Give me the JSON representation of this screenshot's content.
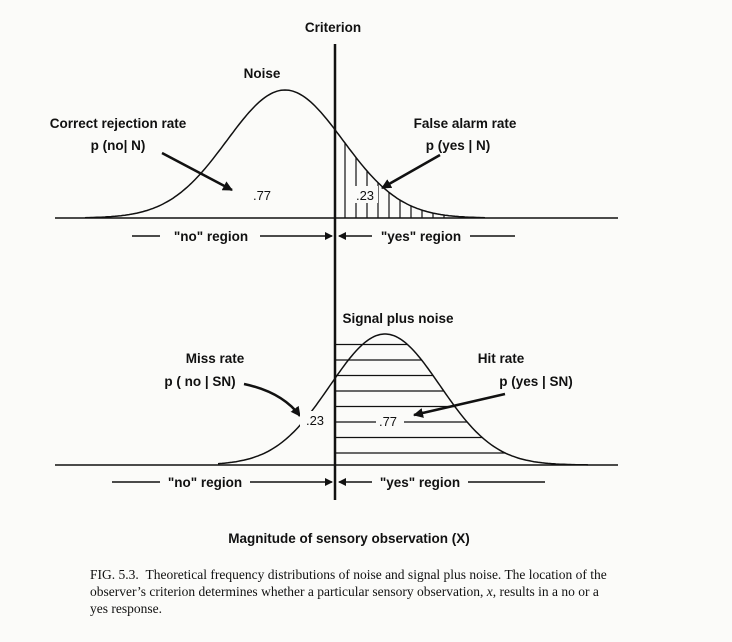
{
  "criterion_label": "Criterion",
  "noise": {
    "title": "Noise",
    "correct_rejection_label": "Correct rejection rate",
    "correct_rejection_formula": "p (no| N)",
    "false_alarm_label": "False alarm rate",
    "false_alarm_formula": "p (yes | N)",
    "correct_rejection_value": ".77",
    "false_alarm_value": ".23",
    "no_region": "\"no\" region",
    "yes_region": "\"yes\" region"
  },
  "signal": {
    "title": "Signal plus noise",
    "miss_label": "Miss rate",
    "miss_formula": "p ( no | SN)",
    "hit_label": "Hit rate",
    "hit_formula": "p (yes | SN)",
    "miss_value": ".23",
    "hit_value": ".77",
    "no_region": "\"no\" region",
    "yes_region": "\"yes\" region"
  },
  "x_axis_label": "Magnitude of sensory observation (X)",
  "caption": {
    "fig_number": "FIG. 5.3.",
    "text": "Theoretical frequency distributions of noise and signal plus noise. The location of the observer’s criterion determines whether a particular sensory observation, ",
    "var": "x",
    "text_end": ", results in a no or a yes response."
  }
}
